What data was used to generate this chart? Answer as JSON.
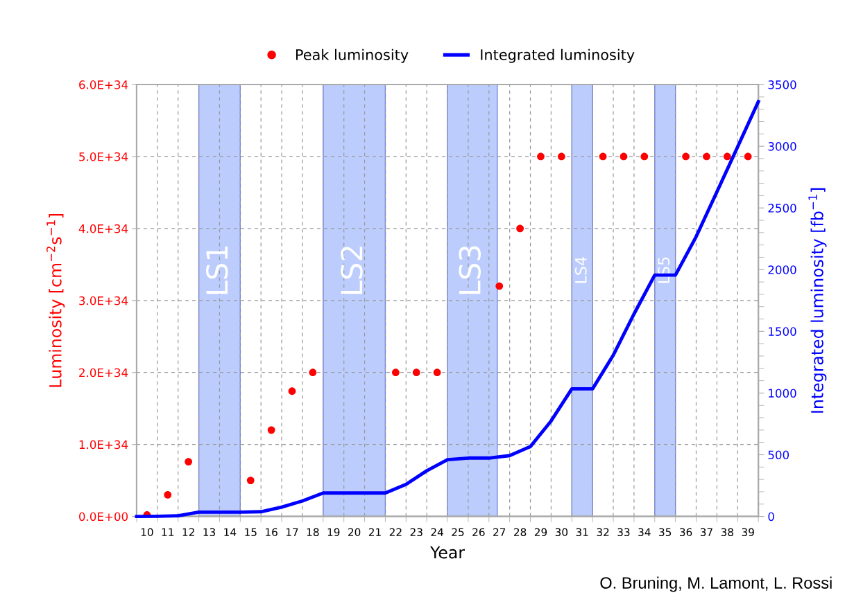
{
  "chart_data": {
    "type": "scatter",
    "xlabel": "Year",
    "ylabel": "Luminosity [cm$^{−2}$s$^{−1}$]",
    "y2label": "Integrated luminosity [fb$^{−1}$]",
    "annotations": [
      "O. Bruning, M. Lamont, L. Rossi"
    ],
    "xlim": [
      9.5,
      39.5
    ],
    "xticks": [
      {
        "value": 9.5,
        "label": null
      },
      {
        "value": 10.5,
        "label": null
      },
      {
        "value": 11.5,
        "label": null
      },
      {
        "value": 12.5,
        "label": null
      },
      {
        "value": 13.5,
        "label": null
      },
      {
        "value": 14.5,
        "label": null
      },
      {
        "value": 15.5,
        "label": null
      },
      {
        "value": 16.5,
        "label": null
      },
      {
        "value": 17.5,
        "label": null
      },
      {
        "value": 18.5,
        "label": null
      },
      {
        "value": 19.5,
        "label": null
      },
      {
        "value": 20.5,
        "label": null
      },
      {
        "value": 21.5,
        "label": null
      },
      {
        "value": 22.5,
        "label": null
      },
      {
        "value": 23.5,
        "label": null
      },
      {
        "value": 24.5,
        "label": null
      },
      {
        "value": 25.5,
        "label": null
      },
      {
        "value": 26.5,
        "label": null
      },
      {
        "value": 27.5,
        "label": null
      },
      {
        "value": 28.5,
        "label": null
      },
      {
        "value": 29.5,
        "label": null
      },
      {
        "value": 30.5,
        "label": null
      },
      {
        "value": 31.5,
        "label": null
      },
      {
        "value": 32.5,
        "label": null
      },
      {
        "value": 33.5,
        "label": null
      },
      {
        "value": 34.5,
        "label": null
      },
      {
        "value": 35.5,
        "label": null
      },
      {
        "value": 36.5,
        "label": null
      },
      {
        "value": 37.5,
        "label": null
      },
      {
        "value": 38.5,
        "label": null
      },
      {
        "value": 39.5,
        "label": null
      },
      10,
      11,
      12,
      13,
      14,
      15,
      16,
      17,
      18,
      19,
      20,
      21,
      22,
      23,
      24,
      25,
      26,
      27,
      28,
      29,
      30,
      31,
      32,
      33,
      34,
      35,
      36,
      37,
      38,
      39
    ],
    "ylim": [
      0,
      6e+34
    ],
    "yticks": [
      {
        "value": 0,
        "label": "0.0E+00"
      },
      {
        "value": 1e+34,
        "label": "1.0E+34"
      },
      {
        "value": 2e+34,
        "label": "2.0E+34"
      },
      {
        "value": 3e+34,
        "label": "3.0E+34"
      },
      {
        "value": 4e+34,
        "label": "4.0E+34"
      },
      {
        "value": 5e+34,
        "label": "5.0E+34"
      },
      {
        "value": 6e+34,
        "label": "6.0E+34"
      }
    ],
    "y2lim": [
      0,
      3500
    ],
    "y2ticks": [
      0,
      500,
      1000,
      1500,
      2000,
      2500,
      3000,
      3500,
      {
        "value": 100,
        "label": null
      },
      {
        "value": 200,
        "label": null
      },
      {
        "value": 300,
        "label": null
      },
      {
        "value": 400,
        "label": null
      },
      {
        "value": 600,
        "label": null
      },
      {
        "value": 700,
        "label": null
      },
      {
        "value": 800,
        "label": null
      },
      {
        "value": 900,
        "label": null
      },
      {
        "value": 1100,
        "label": null
      },
      {
        "value": 1200,
        "label": null
      },
      {
        "value": 1300,
        "label": null
      },
      {
        "value": 1400,
        "label": null
      },
      {
        "value": 1600,
        "label": null
      },
      {
        "value": 1700,
        "label": null
      },
      {
        "value": 1800,
        "label": null
      },
      {
        "value": 1900,
        "label": null
      },
      {
        "value": 2100,
        "label": null
      },
      {
        "value": 2200,
        "label": null
      },
      {
        "value": 2300,
        "label": null
      },
      {
        "value": 2400,
        "label": null
      },
      {
        "value": 2600,
        "label": null
      },
      {
        "value": 2700,
        "label": null
      },
      {
        "value": 2800,
        "label": null
      },
      {
        "value": 2900,
        "label": null
      },
      {
        "value": 3100,
        "label": null
      },
      {
        "value": 3200,
        "label": null
      },
      {
        "value": 3300,
        "label": null
      },
      {
        "value": 3400,
        "label": null
      }
    ],
    "grid": true,
    "legend": "top",
    "series": [
      {
        "name": "Peak luminosity",
        "marker": "circle",
        "color": "#ff0000",
        "x": [
          10,
          11,
          12,
          15,
          16,
          17,
          18,
          22,
          23,
          24,
          27,
          28,
          29,
          30,
          32,
          33,
          34,
          36,
          37,
          38,
          39
        ],
        "values": [
          2e+32,
          3e+33,
          7.6e+33,
          5e+33,
          1.2e+34,
          1.74e+34,
          2e+34,
          2e+34,
          2e+34,
          2e+34,
          3.2e+34,
          4e+34,
          5e+34,
          5e+34,
          5e+34,
          5e+34,
          5e+34,
          5e+34,
          5e+34,
          5e+34,
          5e+34
        ]
      },
      {
        "name": "Integrated luminosity",
        "type": "line",
        "axis": "y2",
        "line_style": "solid",
        "marker": "none",
        "color": "#0000ff",
        "x": [
          9.5,
          10.5,
          11.5,
          12.5,
          13.5,
          14.5,
          15.5,
          16.5,
          17.5,
          18.5,
          19.5,
          20.5,
          21.5,
          22.5,
          23.5,
          24.5,
          25.5,
          26.5,
          27.5,
          28.5,
          29.5,
          30.5,
          31.5,
          32.5,
          33.5,
          34.5,
          35.5,
          36.5,
          37.5,
          38.5,
          39.5
        ],
        "values": [
          0,
          1,
          5,
          35,
          35,
          35,
          38,
          75,
          125,
          190,
          190,
          190,
          190,
          260,
          370,
          460,
          473,
          473,
          493,
          566,
          774,
          1034,
          1034,
          1307,
          1641,
          1956,
          1956,
          2268,
          2630,
          2995,
          3362
        ]
      }
    ],
    "bands": [
      {
        "axis": "x",
        "from": 12.5,
        "to": 14.5,
        "label": "LS1",
        "color": "#bccdfd"
      },
      {
        "axis": "x",
        "from": 18.5,
        "to": 21.5,
        "label": "LS2",
        "color": "#bccdfd"
      },
      {
        "axis": "x",
        "from": 24.5,
        "to": 26.9,
        "label": "LS3",
        "color": "#bccdfd"
      },
      {
        "axis": "x",
        "from": 30.5,
        "to": 31.5,
        "label": "LS4",
        "color": "#bccdfd"
      },
      {
        "axis": "x",
        "from": 34.5,
        "to": 35.5,
        "label": "LS5",
        "color": "#bccdfd"
      }
    ]
  }
}
